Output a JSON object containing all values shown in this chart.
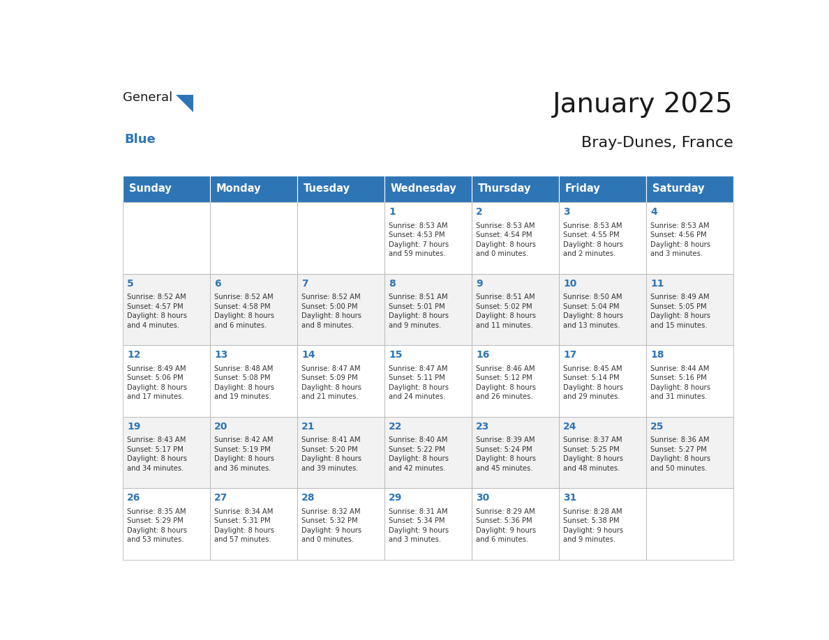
{
  "title": "January 2025",
  "subtitle": "Bray-Dunes, France",
  "days_of_week": [
    "Sunday",
    "Monday",
    "Tuesday",
    "Wednesday",
    "Thursday",
    "Friday",
    "Saturday"
  ],
  "header_bg": "#2E75B6",
  "header_text_color": "#FFFFFF",
  "cell_bg_even": "#F2F2F2",
  "cell_bg_odd": "#FFFFFF",
  "cell_text_color": "#333333",
  "day_num_color": "#2E75B6",
  "grid_color": "#AAAAAA",
  "title_color": "#1A1A1A",
  "subtitle_color": "#1A1A1A",
  "weeks": [
    [
      {
        "day": 0,
        "text": ""
      },
      {
        "day": 0,
        "text": ""
      },
      {
        "day": 0,
        "text": ""
      },
      {
        "day": 1,
        "text": "Sunrise: 8:53 AM\nSunset: 4:53 PM\nDaylight: 7 hours\nand 59 minutes."
      },
      {
        "day": 2,
        "text": "Sunrise: 8:53 AM\nSunset: 4:54 PM\nDaylight: 8 hours\nand 0 minutes."
      },
      {
        "day": 3,
        "text": "Sunrise: 8:53 AM\nSunset: 4:55 PM\nDaylight: 8 hours\nand 2 minutes."
      },
      {
        "day": 4,
        "text": "Sunrise: 8:53 AM\nSunset: 4:56 PM\nDaylight: 8 hours\nand 3 minutes."
      }
    ],
    [
      {
        "day": 5,
        "text": "Sunrise: 8:52 AM\nSunset: 4:57 PM\nDaylight: 8 hours\nand 4 minutes."
      },
      {
        "day": 6,
        "text": "Sunrise: 8:52 AM\nSunset: 4:58 PM\nDaylight: 8 hours\nand 6 minutes."
      },
      {
        "day": 7,
        "text": "Sunrise: 8:52 AM\nSunset: 5:00 PM\nDaylight: 8 hours\nand 8 minutes."
      },
      {
        "day": 8,
        "text": "Sunrise: 8:51 AM\nSunset: 5:01 PM\nDaylight: 8 hours\nand 9 minutes."
      },
      {
        "day": 9,
        "text": "Sunrise: 8:51 AM\nSunset: 5:02 PM\nDaylight: 8 hours\nand 11 minutes."
      },
      {
        "day": 10,
        "text": "Sunrise: 8:50 AM\nSunset: 5:04 PM\nDaylight: 8 hours\nand 13 minutes."
      },
      {
        "day": 11,
        "text": "Sunrise: 8:49 AM\nSunset: 5:05 PM\nDaylight: 8 hours\nand 15 minutes."
      }
    ],
    [
      {
        "day": 12,
        "text": "Sunrise: 8:49 AM\nSunset: 5:06 PM\nDaylight: 8 hours\nand 17 minutes."
      },
      {
        "day": 13,
        "text": "Sunrise: 8:48 AM\nSunset: 5:08 PM\nDaylight: 8 hours\nand 19 minutes."
      },
      {
        "day": 14,
        "text": "Sunrise: 8:47 AM\nSunset: 5:09 PM\nDaylight: 8 hours\nand 21 minutes."
      },
      {
        "day": 15,
        "text": "Sunrise: 8:47 AM\nSunset: 5:11 PM\nDaylight: 8 hours\nand 24 minutes."
      },
      {
        "day": 16,
        "text": "Sunrise: 8:46 AM\nSunset: 5:12 PM\nDaylight: 8 hours\nand 26 minutes."
      },
      {
        "day": 17,
        "text": "Sunrise: 8:45 AM\nSunset: 5:14 PM\nDaylight: 8 hours\nand 29 minutes."
      },
      {
        "day": 18,
        "text": "Sunrise: 8:44 AM\nSunset: 5:16 PM\nDaylight: 8 hours\nand 31 minutes."
      }
    ],
    [
      {
        "day": 19,
        "text": "Sunrise: 8:43 AM\nSunset: 5:17 PM\nDaylight: 8 hours\nand 34 minutes."
      },
      {
        "day": 20,
        "text": "Sunrise: 8:42 AM\nSunset: 5:19 PM\nDaylight: 8 hours\nand 36 minutes."
      },
      {
        "day": 21,
        "text": "Sunrise: 8:41 AM\nSunset: 5:20 PM\nDaylight: 8 hours\nand 39 minutes."
      },
      {
        "day": 22,
        "text": "Sunrise: 8:40 AM\nSunset: 5:22 PM\nDaylight: 8 hours\nand 42 minutes."
      },
      {
        "day": 23,
        "text": "Sunrise: 8:39 AM\nSunset: 5:24 PM\nDaylight: 8 hours\nand 45 minutes."
      },
      {
        "day": 24,
        "text": "Sunrise: 8:37 AM\nSunset: 5:25 PM\nDaylight: 8 hours\nand 48 minutes."
      },
      {
        "day": 25,
        "text": "Sunrise: 8:36 AM\nSunset: 5:27 PM\nDaylight: 8 hours\nand 50 minutes."
      }
    ],
    [
      {
        "day": 26,
        "text": "Sunrise: 8:35 AM\nSunset: 5:29 PM\nDaylight: 8 hours\nand 53 minutes."
      },
      {
        "day": 27,
        "text": "Sunrise: 8:34 AM\nSunset: 5:31 PM\nDaylight: 8 hours\nand 57 minutes."
      },
      {
        "day": 28,
        "text": "Sunrise: 8:32 AM\nSunset: 5:32 PM\nDaylight: 9 hours\nand 0 minutes."
      },
      {
        "day": 29,
        "text": "Sunrise: 8:31 AM\nSunset: 5:34 PM\nDaylight: 9 hours\nand 3 minutes."
      },
      {
        "day": 30,
        "text": "Sunrise: 8:29 AM\nSunset: 5:36 PM\nDaylight: 9 hours\nand 6 minutes."
      },
      {
        "day": 31,
        "text": "Sunrise: 8:28 AM\nSunset: 5:38 PM\nDaylight: 9 hours\nand 9 minutes."
      },
      {
        "day": 0,
        "text": ""
      }
    ]
  ]
}
